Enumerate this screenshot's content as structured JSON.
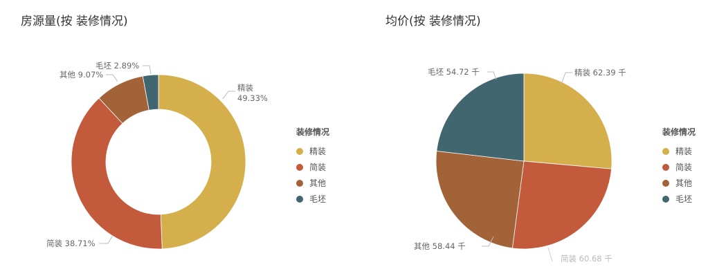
{
  "colors": {
    "精装": "#D4AF4B",
    "简装": "#C45A3C",
    "其他": "#A26338",
    "毛坯": "#41666F"
  },
  "left": {
    "title": "房源量(按 装修情况)",
    "legend_title": "装修情况",
    "legend": [
      "精装",
      "简装",
      "其他",
      "毛坯"
    ],
    "labels": {
      "精装_name": "精装",
      "精装_value": "49.33%",
      "简装": "简装 38.71%",
      "其他": "其他 9.07%",
      "毛坯": "毛坯 2.89%"
    }
  },
  "right": {
    "title": "均价(按 装修情况)",
    "legend_title": "装修情况",
    "legend": [
      "精装",
      "简装",
      "其他",
      "毛坯"
    ],
    "labels": {
      "精装": "精装 62.39 千",
      "简装": "简装 60.68 千",
      "其他": "其他 58.44 千",
      "毛坯": "毛坯 54.72 千"
    }
  },
  "chart_data": [
    {
      "type": "pie",
      "variant": "donut",
      "title": "房源量(按 装修情况)",
      "legend_title": "装修情况",
      "legend_position": "right",
      "categories": [
        "精装",
        "简装",
        "其他",
        "毛坯"
      ],
      "values": [
        49.33,
        38.71,
        9.07,
        2.89
      ],
      "unit": "%"
    },
    {
      "type": "pie",
      "title": "均价(按 装修情况)",
      "legend_title": "装修情况",
      "legend_position": "right",
      "categories": [
        "精装",
        "简装",
        "其他",
        "毛坯"
      ],
      "values": [
        62.39,
        60.68,
        58.44,
        54.72
      ],
      "unit": "千"
    }
  ]
}
